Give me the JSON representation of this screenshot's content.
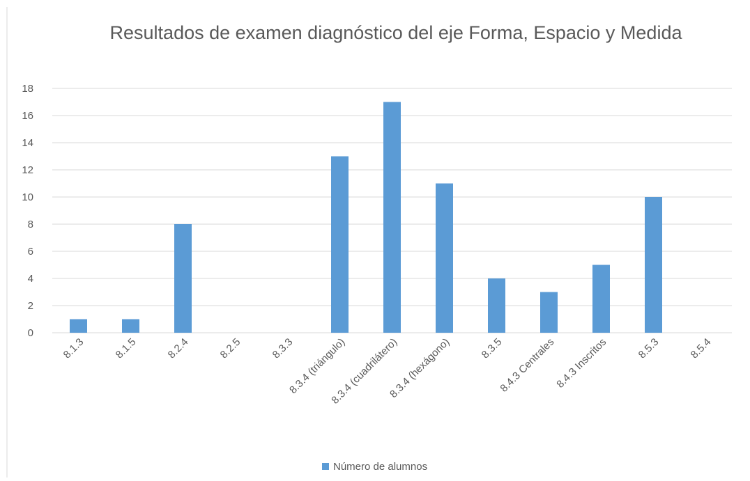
{
  "chart_data": {
    "type": "bar",
    "title": "Resultados de examen diagnóstico del eje Forma, Espacio y Medida",
    "categories": [
      "8.1.3",
      "8.1.5",
      "8.2.4",
      "8.2.5",
      "8.3.3",
      "8.3.4 (triángulo)",
      "8.3.4 (cuadrilátero)",
      "8.3.4 (hexágono)",
      "8.3.5",
      "8.4.3 Centrales",
      "8.4.3 Inscritos",
      "8.5.3",
      "8.5.4"
    ],
    "series": [
      {
        "name": "Número de alumnos",
        "color": "#5b9bd5",
        "values": [
          1,
          1,
          8,
          0,
          0,
          13,
          17,
          11,
          4,
          3,
          5,
          10,
          0
        ]
      }
    ],
    "ylim": [
      0,
      18
    ],
    "yticks": [
      0,
      2,
      4,
      6,
      8,
      10,
      12,
      14,
      16,
      18
    ],
    "grid": true,
    "legend": "bottom"
  }
}
